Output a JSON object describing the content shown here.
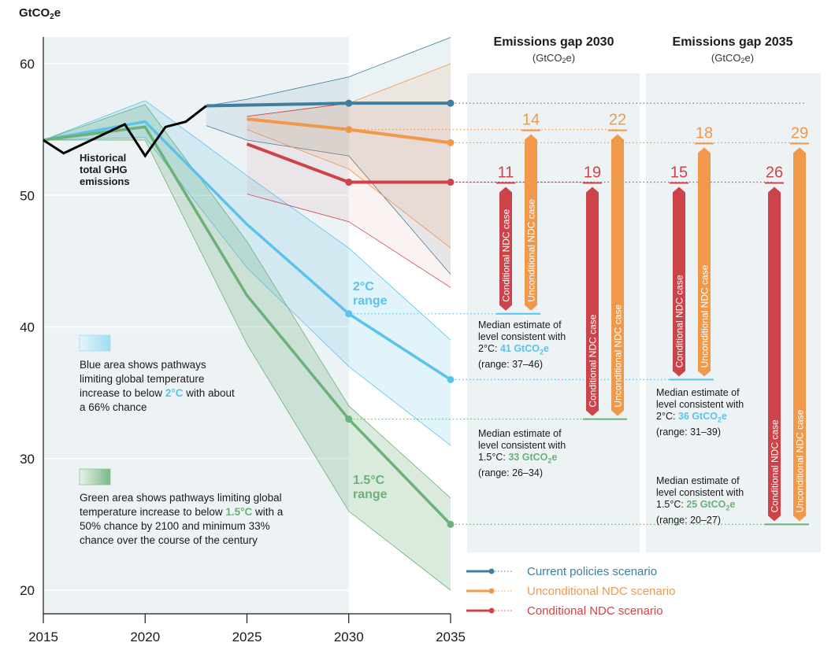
{
  "chart_data": {
    "type": "line",
    "unit_label": "GtCO2e",
    "ylabel": "GtCO2e",
    "xlabel": "",
    "ylim": [
      20,
      60
    ],
    "xlim": [
      2015,
      2035
    ],
    "yticks": [
      20,
      30,
      40,
      50,
      60
    ],
    "xticks": [
      2015,
      2020,
      2025,
      2030,
      2035
    ],
    "grid": true,
    "historical": {
      "name": "Historical total GHG emissions",
      "label_lines": [
        "Historical",
        "total GHG",
        "emissions"
      ],
      "x": [
        2015,
        2016,
        2019,
        2020,
        2021,
        2022,
        2023
      ],
      "y": [
        54.2,
        53.2,
        55.4,
        53.0,
        55.2,
        55.6,
        56.8
      ],
      "color": "#000000"
    },
    "scenarios": [
      {
        "name": "Current policies scenario",
        "key": "current",
        "color": "#3f7e9c",
        "median": {
          "x": [
            2023,
            2030,
            2035
          ],
          "y": [
            56.8,
            57,
            57
          ]
        },
        "range_upper": {
          "x": [
            2023,
            2025,
            2030,
            2035
          ],
          "y": [
            56.8,
            57.3,
            59,
            62
          ]
        },
        "range_lower": {
          "x": [
            2023,
            2025,
            2030,
            2035
          ],
          "y": [
            55.3,
            54.2,
            53,
            44
          ]
        }
      },
      {
        "name": "Unconditional NDC scenario",
        "key": "unconditional",
        "color": "#f0994a",
        "median": {
          "x": [
            2025,
            2030,
            2035
          ],
          "y": [
            55.8,
            55,
            54
          ]
        },
        "range_upper": {
          "x": [
            2025,
            2030,
            2035
          ],
          "y": [
            56.0,
            57,
            60
          ]
        },
        "range_lower": {
          "x": [
            2025,
            2030,
            2035
          ],
          "y": [
            55.0,
            52,
            46
          ]
        }
      },
      {
        "name": "Conditional NDC scenario",
        "key": "conditional",
        "color": "#cc4449",
        "median": {
          "x": [
            2025,
            2030,
            2035
          ],
          "y": [
            53.9,
            51,
            51
          ]
        },
        "range_upper": {
          "x": [
            2025,
            2030,
            2035
          ],
          "y": [
            56.0,
            57,
            57
          ]
        },
        "range_lower": {
          "x": [
            2025,
            2030,
            2035
          ],
          "y": [
            50.1,
            48,
            43
          ]
        }
      }
    ],
    "pathways": [
      {
        "name": "2°C range",
        "label_lines": [
          "2°C",
          "range"
        ],
        "color": "#5bc3eb",
        "median": {
          "x": [
            2015,
            2020,
            2025,
            2030,
            2035
          ],
          "y": [
            54.2,
            55.6,
            47.8,
            41,
            36
          ]
        },
        "range_upper": {
          "x": [
            2015,
            2020,
            2025,
            2030,
            2035
          ],
          "y": [
            54.2,
            57.2,
            51.5,
            46,
            39
          ]
        },
        "range_lower": {
          "x": [
            2015,
            2020,
            2025,
            2030,
            2035
          ],
          "y": [
            54.2,
            54.4,
            44.5,
            37,
            31
          ]
        }
      },
      {
        "name": "1.5°C range",
        "label_lines": [
          "1.5°C",
          "range"
        ],
        "color": "#6cb07a",
        "median": {
          "x": [
            2015,
            2020,
            2025,
            2030,
            2035
          ],
          "y": [
            54.2,
            55.2,
            42.4,
            33,
            25
          ]
        },
        "range_upper": {
          "x": [
            2015,
            2020,
            2025,
            2030,
            2035
          ],
          "y": [
            54.2,
            56.9,
            46.5,
            34,
            27
          ]
        },
        "range_lower": {
          "x": [
            2015,
            2020,
            2025,
            2030,
            2035
          ],
          "y": [
            54.2,
            54.2,
            38.7,
            26,
            20
          ]
        }
      }
    ],
    "gaps": [
      {
        "title": "Emissions gap 2030",
        "subtitle": "(GtCO2e)",
        "year": 2030,
        "bars": [
          {
            "case": "Conditional NDC case",
            "target": "2°C",
            "value": 11,
            "from": 51,
            "to": 41,
            "color": "#cc4449"
          },
          {
            "case": "Unconditional NDC case",
            "target": "2°C",
            "value": 14,
            "from": 55,
            "to": 41,
            "color": "#f0994a"
          },
          {
            "case": "Conditional NDC case",
            "target": "1.5°C",
            "value": 19,
            "from": 51,
            "to": 33,
            "color": "#cc4449"
          },
          {
            "case": "Unconditional NDC case",
            "target": "1.5°C",
            "value": 22,
            "from": 55,
            "to": 33,
            "color": "#f0994a"
          }
        ],
        "notes": [
          {
            "lines": [
              "Median estimate of",
              "level consistent with"
            ],
            "prefix": "2°C: ",
            "value": "41 GtCO2e",
            "range": "(range: 37–46)",
            "color": "#5bc3eb"
          },
          {
            "lines": [
              "Median estimate of",
              "level consistent with"
            ],
            "prefix": "1.5°C: ",
            "value": "33 GtCO2e",
            "range": "(range: 26–34)",
            "color": "#6cb07a"
          }
        ]
      },
      {
        "title": "Emissions gap 2035",
        "subtitle": "(GtCO2e)",
        "year": 2035,
        "bars": [
          {
            "case": "Conditional NDC case",
            "target": "2°C",
            "value": 15,
            "from": 51,
            "to": 36,
            "color": "#cc4449"
          },
          {
            "case": "Unconditional NDC case",
            "target": "2°C",
            "value": 18,
            "from": 54,
            "to": 36,
            "color": "#f0994a"
          },
          {
            "case": "Conditional NDC case",
            "target": "1.5°C",
            "value": 26,
            "from": 51,
            "to": 25,
            "color": "#cc4449"
          },
          {
            "case": "Unconditional NDC case",
            "target": "1.5°C",
            "value": 29,
            "from": 54,
            "to": 25,
            "color": "#f0994a"
          }
        ],
        "notes": [
          {
            "lines": [
              "Median estimate of",
              "level consistent with"
            ],
            "prefix": "2°C: ",
            "value": "36 GtCO2e",
            "range": "(range: 31–39)",
            "color": "#5bc3eb"
          },
          {
            "lines": [
              "Median estimate of",
              "level consistent with"
            ],
            "prefix": "1.5°C: ",
            "value": "25 GtCO2e",
            "range": "(range: 20–27)",
            "color": "#6cb07a"
          }
        ]
      }
    ],
    "annotations": {
      "blue_area": {
        "pre": "Blue area shows pathways limiting global temperature increase to below ",
        "highlight": "2°C",
        "post": " with about a 66% chance",
        "color": "#5bc3eb"
      },
      "green_area": {
        "pre": "Green area shows pathways limiting global temperature increase to below ",
        "highlight": "1.5°C",
        "post": " with a 50% chance by 2100 and minimum 33% chance over the course of the century",
        "color": "#6cb07a"
      }
    },
    "legend": {
      "position": "bottom-right",
      "entries": [
        {
          "label": "Current policies scenario",
          "color": "#3f7e9c"
        },
        {
          "label": "Unconditional NDC scenario",
          "color": "#f0994a"
        },
        {
          "label": "Conditional NDC scenario",
          "color": "#cc4449"
        }
      ]
    }
  }
}
